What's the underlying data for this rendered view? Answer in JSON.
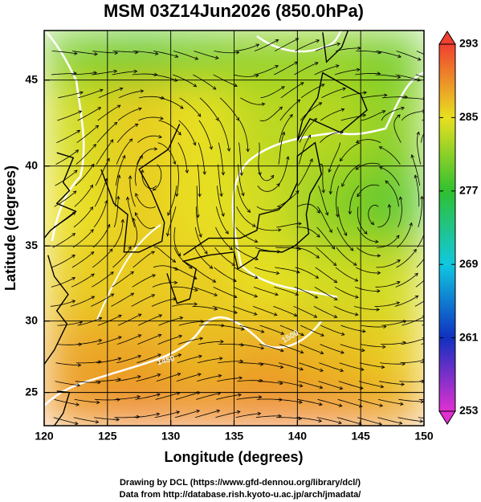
{
  "chart_data": {
    "type": "field_map",
    "title": "MSM 03Z14Jun2026 (850.0hPa)",
    "xlabel": "Longitude (degrees)",
    "ylabel": "Latitude  (degrees)",
    "xlim": [
      120,
      150
    ],
    "ylim": [
      22.6,
      47.7
    ],
    "xticks": [
      120,
      125,
      130,
      135,
      140,
      145,
      150
    ],
    "yticks": [
      25,
      30,
      35,
      40,
      45
    ],
    "projection": "mercator",
    "grid": true,
    "field": {
      "lon_edges": [
        120,
        125,
        130,
        135,
        140,
        145,
        150
      ],
      "lat_edges": [
        22.6,
        25,
        30,
        35,
        40,
        45,
        47.7
      ],
      "values": [
        [
          289,
          290,
          290,
          290,
          290,
          289
        ],
        [
          288,
          288,
          287,
          288,
          287,
          286
        ],
        [
          286,
          286,
          286,
          285,
          284,
          284
        ],
        [
          285,
          286,
          285,
          284,
          281,
          279
        ],
        [
          284,
          286,
          285,
          283,
          283,
          281
        ],
        [
          280,
          279,
          280,
          281,
          281,
          280
        ]
      ]
    },
    "colorbar": {
      "lim": [
        253,
        293
      ],
      "ticks": [
        253,
        261,
        269,
        277,
        285,
        293
      ],
      "colors": [
        "#e030d0",
        "#1030c0",
        "#10c8e0",
        "#30c030",
        "#e8e020",
        "#f04030"
      ]
    },
    "contour_labels": [
      "1500",
      "1450"
    ],
    "credits": [
      "Drawing by DCL (https://www.gfd-dennou.org/library/dcl/)",
      "Data from http://database.rish.kyoto-u.ac.jp/arch/jmadata/"
    ]
  }
}
